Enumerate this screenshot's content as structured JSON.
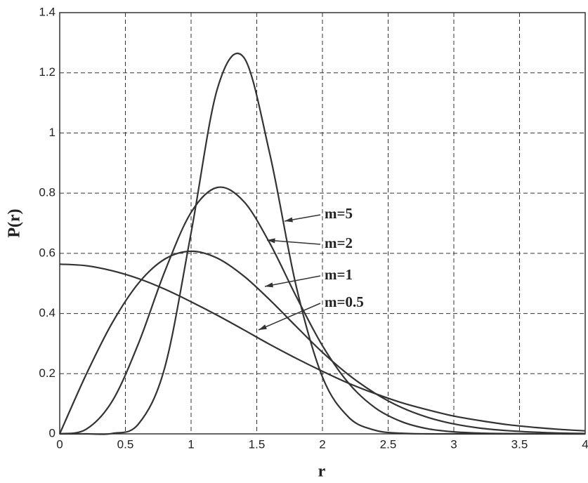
{
  "chart_data": {
    "type": "line",
    "x_label": "r",
    "y_label": "P(r)",
    "x": [
      0,
      0.2,
      0.4,
      0.6,
      0.8,
      1.0,
      1.2,
      1.4,
      1.6,
      1.8,
      2.0,
      2.2,
      2.4,
      2.6,
      2.8,
      3.0,
      3.2,
      3.4,
      3.6,
      3.8,
      4.0
    ],
    "series": [
      {
        "name": "m=5",
        "color": "#333333",
        "values": [
          0,
          0,
          0.0014,
          0.033,
          0.221,
          0.668,
          1.147,
          1.252,
          0.929,
          0.491,
          0.189,
          0.055,
          0.012,
          0.002,
          0,
          0,
          0,
          0,
          0,
          0,
          0
        ]
      },
      {
        "name": "m=2",
        "color": "#333333",
        "values": [
          0,
          0.015,
          0.109,
          0.301,
          0.54,
          0.736,
          0.819,
          0.773,
          0.633,
          0.457,
          0.293,
          0.168,
          0.087,
          0.041,
          0.017,
          0.0067,
          0.0024,
          0.0008,
          0.0002,
          0.0001,
          0
        ]
      },
      {
        "name": "m=1",
        "color": "#333333",
        "values": [
          0,
          0.196,
          0.369,
          0.501,
          0.581,
          0.607,
          0.584,
          0.525,
          0.445,
          0.357,
          0.271,
          0.196,
          0.135,
          0.088,
          0.055,
          0.033,
          0.019,
          0.011,
          0.006,
          0.0027,
          0.0013
        ]
      },
      {
        "name": "m=0.5",
        "color": "#333333",
        "values": [
          0.564,
          0.559,
          0.542,
          0.516,
          0.481,
          0.439,
          0.394,
          0.346,
          0.297,
          0.251,
          0.208,
          0.168,
          0.134,
          0.104,
          0.08,
          0.059,
          0.044,
          0.031,
          0.022,
          0.015,
          0.01
        ]
      }
    ],
    "xlim": [
      0,
      4
    ],
    "ylim": [
      0,
      1.4
    ],
    "xticks": [
      0,
      0.5,
      1,
      1.5,
      2,
      2.5,
      3,
      3.5,
      4
    ],
    "yticks": [
      0,
      0.2,
      0.4,
      0.6,
      0.8,
      1,
      1.2,
      1.4
    ],
    "grid": true
  }
}
